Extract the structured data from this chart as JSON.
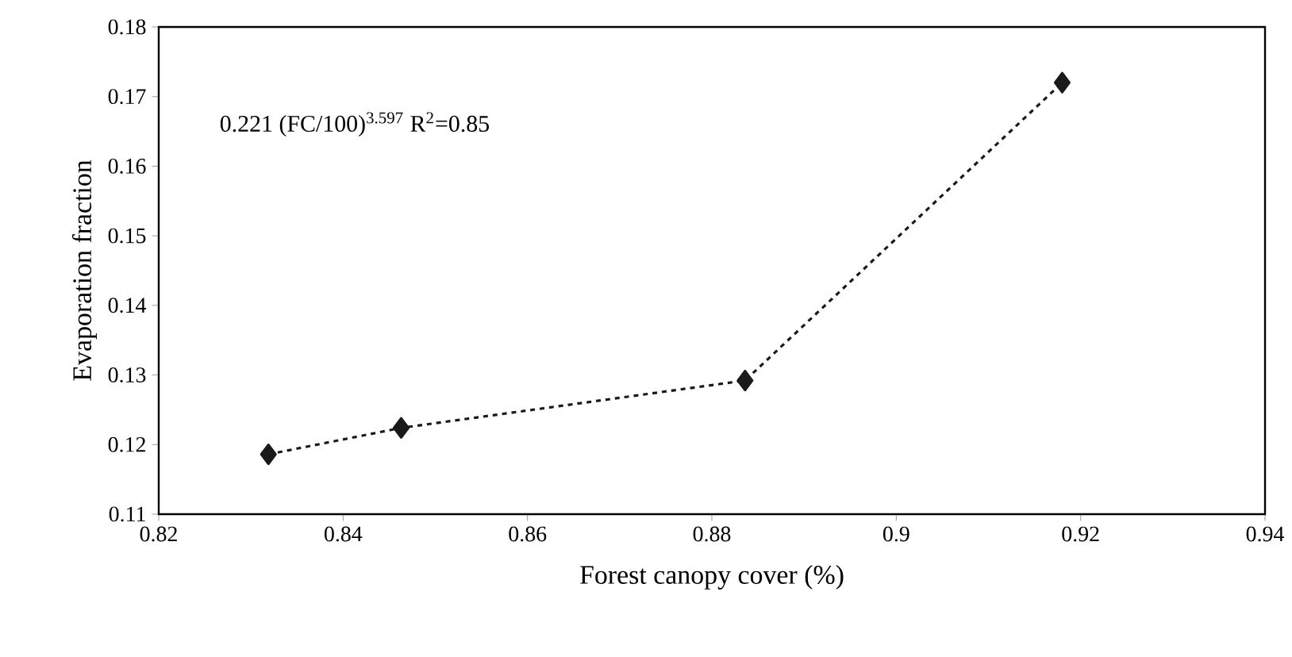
{
  "chart_data": {
    "type": "line",
    "xlabel": "Forest canopy cover (%)",
    "ylabel": "Evaporation fraction",
    "x": [
      0.8319,
      0.8463,
      0.8836,
      0.918
    ],
    "values": [
      0.1186,
      0.1224,
      0.1292,
      0.172
    ],
    "color": "#1a1a1a",
    "marker": "diamond",
    "line_style": "dashed",
    "xlim": [
      0.82,
      0.94
    ],
    "xticks": [
      0.82,
      0.84,
      0.86,
      0.88,
      0.9,
      0.92,
      0.94
    ],
    "ylim": [
      0.11,
      0.18
    ],
    "yticks": [
      0.11,
      0.12,
      0.13,
      0.14,
      0.15,
      0.16,
      0.17,
      0.18
    ],
    "annotations": [
      "0.221 (FC/100)$^{3.597}$  R$^{2}$=0.85"
    ],
    "grid": false
  }
}
